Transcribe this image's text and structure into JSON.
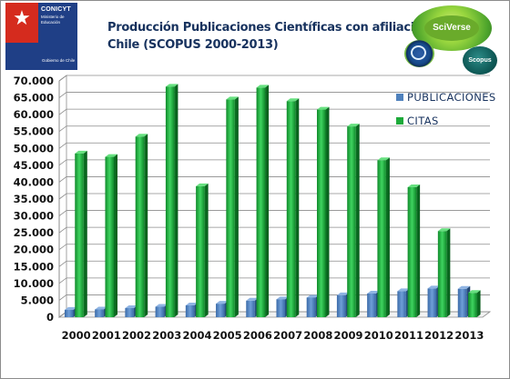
{
  "title": {
    "line1": "Producción Publicaciones Científicas con afiliación",
    "line2": "Chile (SCOPUS 2000-2013)"
  },
  "logo": {
    "org": "CONICYT",
    "ministry": "Ministerio de Educación",
    "government": "Gobierno de Chile"
  },
  "badges": {
    "sciverse": "SciVerse",
    "scopus": "Scopus"
  },
  "colors": {
    "publicaciones": "#4f81bd",
    "citas": "#1daa3a",
    "grid": "#8c8c8c"
  },
  "chart_data": {
    "type": "bar",
    "title": "Producción Publicaciones Científicas con afiliación Chile (SCOPUS 2000-2013)",
    "xlabel": "",
    "ylabel": "",
    "ylim": [
      0,
      70000
    ],
    "yticks": [
      "0",
      "5.000",
      "10.000",
      "15.000",
      "20.000",
      "25.000",
      "30.000",
      "35.000",
      "40.000",
      "45.000",
      "50.000",
      "55.000",
      "60.000",
      "65.000",
      "70.000"
    ],
    "grid": true,
    "legend_position": "top-right",
    "categories": [
      "2000",
      "2001",
      "2002",
      "2003",
      "2004",
      "2005",
      "2006",
      "2007",
      "2008",
      "2009",
      "2010",
      "2011",
      "2012",
      "2013"
    ],
    "series": [
      {
        "name": "PUBLICACIONES",
        "values": [
          2200,
          2300,
          2700,
          3100,
          3500,
          4000,
          4900,
          5300,
          5800,
          6500,
          7000,
          7700,
          8500,
          8400
        ]
      },
      {
        "name": "CITAS",
        "values": [
          48500,
          47500,
          53500,
          68300,
          38800,
          64500,
          68000,
          64000,
          61500,
          56500,
          46500,
          38500,
          25500,
          7200
        ]
      }
    ]
  }
}
